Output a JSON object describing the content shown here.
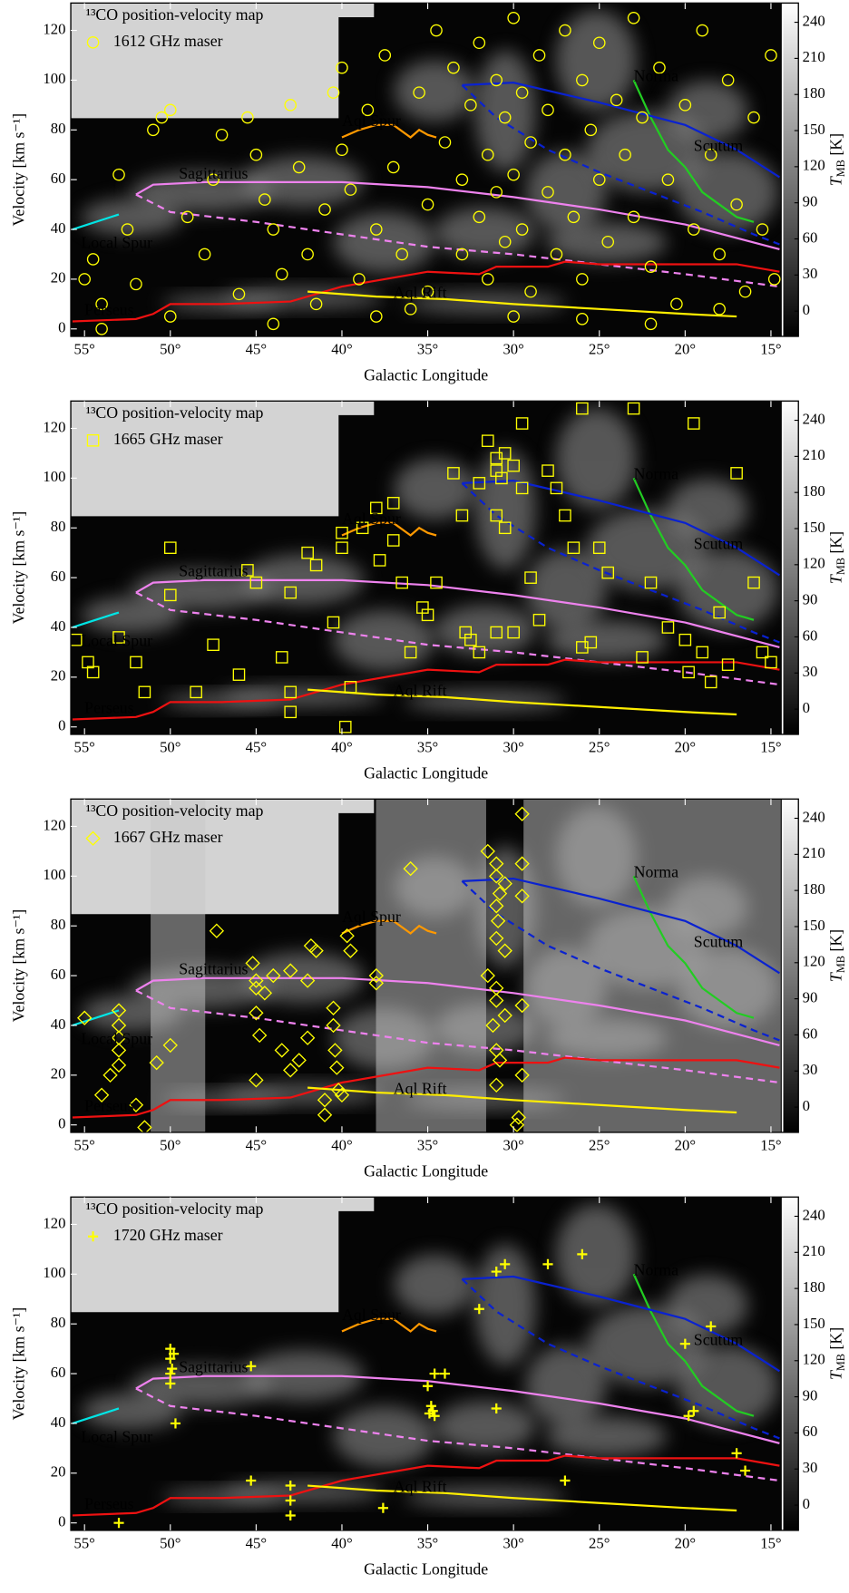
{
  "axes": {
    "xlabel": "Galactic Longitude",
    "ylabel": "Velocity [km s⁻¹]",
    "y2label": "T",
    "y2label_sub": "MB",
    "y2label_unit": "[K]",
    "xlim": [
      55.8,
      14.4
    ],
    "ylim": [
      -3,
      131
    ],
    "y2lim": [
      -21,
      256
    ],
    "xticks": [
      {
        "value": 55,
        "label": "55°"
      },
      {
        "value": 50,
        "label": "50°"
      },
      {
        "value": 45,
        "label": "45°"
      },
      {
        "value": 40,
        "label": "40°"
      },
      {
        "value": 35,
        "label": "35°"
      },
      {
        "value": 30,
        "label": "30°"
      },
      {
        "value": 25,
        "label": "25°"
      },
      {
        "value": 20,
        "label": "20°"
      },
      {
        "value": 15,
        "label": "15°"
      }
    ],
    "yticks": [
      0,
      20,
      40,
      60,
      80,
      100,
      120
    ],
    "y2ticks": [
      0,
      30,
      60,
      90,
      120,
      150,
      180,
      210,
      240
    ]
  },
  "arms": [
    {
      "name": "Local Spur",
      "color": "#00e5e5",
      "x": [
        55.7,
        53
      ],
      "values": [
        40,
        46
      ]
    },
    {
      "name": "Sagittarius",
      "color": "#ee82ee",
      "x": [
        52,
        51,
        48,
        45,
        40,
        35,
        30,
        25,
        20,
        14.5
      ],
      "values": [
        54,
        58,
        59,
        59,
        59,
        57,
        53,
        48,
        42,
        32
      ]
    },
    {
      "color": "#ee82ee",
      "style": "dashed",
      "x": [
        52,
        50,
        45,
        40,
        35,
        30,
        25,
        20,
        14.5
      ],
      "values": [
        54,
        47,
        43,
        38,
        33,
        30,
        26,
        22,
        17
      ]
    },
    {
      "name": "Perseus",
      "color": "#ee1111",
      "x": [
        55.7,
        52,
        51,
        50,
        47,
        43,
        40,
        35,
        32,
        31,
        28,
        27,
        25,
        20,
        17,
        14.5
      ],
      "values": [
        3,
        4,
        6,
        10,
        10,
        11,
        17,
        23,
        22,
        25,
        25,
        27,
        26,
        26,
        26,
        23
      ]
    },
    {
      "name": "Aql Spur",
      "color": "#ff9900",
      "x": [
        40,
        39,
        38,
        37,
        36,
        35.5,
        35,
        34.5
      ],
      "values": [
        77,
        80,
        82,
        82,
        77,
        80,
        78,
        77
      ]
    },
    {
      "name": "Aql Rift",
      "color": "#ffee00",
      "x": [
        42,
        38,
        34,
        30,
        25,
        20,
        17
      ],
      "values": [
        15,
        13,
        12,
        10,
        8,
        6,
        5
      ]
    },
    {
      "name": "Norma",
      "color": "#22cc22",
      "x": [
        23,
        22,
        21,
        20,
        19,
        17,
        16
      ],
      "values": [
        100,
        85,
        72,
        65,
        55,
        45,
        43
      ]
    },
    {
      "name": "Scutum",
      "color": "#0a22d0",
      "x": [
        33,
        30,
        25,
        20,
        17,
        14.5
      ],
      "values": [
        98,
        99,
        91,
        82,
        72,
        61
      ]
    },
    {
      "color": "#0a22d0",
      "style": "dashed",
      "x": [
        33,
        31,
        28,
        25,
        22,
        19,
        16,
        14.5
      ],
      "values": [
        98,
        85,
        72,
        63,
        55,
        47,
        38,
        34
      ]
    }
  ],
  "chart_data": [
    {
      "type": "scatter",
      "title": "¹³CO position-velocity map",
      "mask": "none",
      "series": [
        {
          "name": "1612 GHz maser",
          "color": "#ffff00",
          "marker": "circle",
          "x": [
            55,
            54.5,
            54,
            53,
            52.5,
            52,
            51,
            50.5,
            50,
            49,
            48,
            47.5,
            47,
            46,
            45.5,
            45,
            44.5,
            44,
            43.5,
            43,
            42.5,
            42,
            41.5,
            41,
            40.5,
            40,
            39.5,
            39,
            38.5,
            38,
            37.5,
            37,
            36.5,
            36,
            35.5,
            35,
            34.5,
            34,
            33.5,
            33,
            33,
            32.5,
            32,
            32,
            31.5,
            31.5,
            31,
            31,
            30.5,
            30.5,
            30,
            30,
            29.5,
            29.5,
            29,
            29,
            28.5,
            28,
            28,
            27.5,
            27,
            27,
            26.5,
            26,
            26,
            25.5,
            25,
            25,
            24.5,
            24,
            23.5,
            23,
            23,
            22.5,
            22,
            21.5,
            21,
            20.5,
            20,
            19.5,
            19,
            18.5,
            18,
            17.5,
            17,
            16.5,
            16,
            15.5,
            15,
            14.8,
            35,
            38,
            44,
            50,
            54,
            26,
            22,
            18,
            30,
            40
          ],
          "values": [
            20,
            28,
            10,
            62,
            40,
            18,
            80,
            85,
            88,
            45,
            30,
            60,
            78,
            14,
            85,
            70,
            52,
            40,
            22,
            90,
            65,
            30,
            10,
            48,
            95,
            72,
            56,
            20,
            88,
            40,
            110,
            65,
            30,
            8,
            95,
            50,
            120,
            75,
            105,
            60,
            30,
            90,
            115,
            45,
            70,
            20,
            100,
            55,
            85,
            35,
            125,
            62,
            95,
            40,
            75,
            15,
            110,
            55,
            88,
            30,
            120,
            70,
            45,
            100,
            20,
            80,
            60,
            115,
            35,
            92,
            70,
            125,
            45,
            85,
            25,
            105,
            60,
            10,
            90,
            40,
            120,
            70,
            30,
            100,
            50,
            15,
            85,
            40,
            110,
            20,
            15,
            5,
            2,
            5,
            0,
            4,
            2,
            8,
            5,
            105
          ]
        }
      ]
    },
    {
      "type": "scatter",
      "title": "¹³CO position-velocity map",
      "mask": "none",
      "series": [
        {
          "name": "1665 GHz maser",
          "color": "#ffff00",
          "marker": "square",
          "x": [
            55.5,
            54.8,
            54.5,
            53,
            52,
            51.5,
            50,
            50,
            48.5,
            47.5,
            46,
            45,
            45.5,
            43.5,
            43,
            43,
            43,
            42,
            41.5,
            40.5,
            40,
            40,
            39.5,
            39.8,
            38.8,
            38,
            37,
            37.8,
            37,
            36.5,
            36,
            35.3,
            35,
            34.5,
            33.5,
            33,
            32.8,
            32.5,
            32,
            31.5,
            31,
            31,
            30.7,
            30.5,
            30,
            29.5,
            31,
            30.5,
            31,
            30,
            29.5,
            28,
            27.5,
            27,
            26.5,
            26,
            25,
            24.5,
            23,
            22,
            21,
            20,
            19.5,
            19,
            18,
            17,
            16,
            15,
            15.5,
            25.5,
            28.5,
            29,
            22.5,
            19.8,
            18.5,
            17.5,
            26,
            32
          ],
          "values": [
            35,
            26,
            22,
            36,
            26,
            14,
            72,
            53,
            14,
            33,
            21,
            58,
            63,
            28,
            54,
            14,
            6,
            70,
            65,
            42,
            78,
            72,
            16,
            0,
            80,
            88,
            90,
            67,
            75,
            58,
            30,
            48,
            45,
            58,
            102,
            85,
            38,
            35,
            30,
            115,
            108,
            103,
            100,
            110,
            105,
            96,
            85,
            80,
            38,
            38,
            122,
            103,
            96,
            85,
            72,
            128,
            72,
            62,
            128,
            58,
            40,
            35,
            122,
            30,
            46,
            102,
            58,
            26,
            30,
            34,
            43,
            60,
            28,
            22,
            18,
            25,
            32,
            98
          ]
        }
      ]
    },
    {
      "type": "scatter",
      "title": "¹³CO position-velocity map",
      "mask": "bands",
      "series": [
        {
          "name": "1667 GHz maser",
          "color": "#ffff00",
          "marker": "diamond",
          "x": [
            55,
            54,
            53,
            53,
            53,
            53,
            53,
            53.5,
            52,
            51.5,
            50.8,
            50,
            47.3,
            45,
            45.2,
            45,
            44.5,
            45,
            44.8,
            45,
            44,
            43,
            43.5,
            43,
            42.5,
            42,
            42,
            41.8,
            41.5,
            41,
            41,
            40.5,
            40.5,
            40.4,
            40.3,
            40.2,
            40,
            39.7,
            39.5,
            38,
            38,
            36,
            31.5,
            31,
            31,
            30.5,
            30.8,
            31,
            30.9,
            31,
            30.5,
            31.5,
            31,
            31,
            30.5,
            31.2,
            31,
            30.8,
            31,
            29.5,
            29.5,
            29.5,
            29.5,
            29.5,
            29.7,
            29.8
          ],
          "values": [
            43,
            12,
            46,
            40,
            35,
            30,
            24,
            20,
            8,
            -1,
            25,
            32,
            78,
            55,
            65,
            58,
            53,
            45,
            36,
            18,
            60,
            62,
            30,
            22,
            26,
            35,
            58,
            72,
            70,
            10,
            4,
            47,
            40,
            30,
            23,
            14,
            12,
            76,
            70,
            60,
            57,
            103,
            110,
            105,
            100,
            97,
            93,
            88,
            82,
            75,
            70,
            60,
            55,
            50,
            44,
            40,
            30,
            26,
            16,
            125,
            105,
            92,
            48,
            20,
            3,
            0
          ]
        }
      ]
    },
    {
      "type": "scatter",
      "title": "¹³CO position-velocity map",
      "mask": "none",
      "series": [
        {
          "name": "1720 GHz maser",
          "color": "#ffff00",
          "marker": "plus",
          "x": [
            53,
            50,
            49.8,
            50,
            49.9,
            50,
            50,
            49.7,
            45.3,
            45.3,
            43,
            43,
            43,
            37.6,
            34.6,
            34,
            35,
            34.8,
            34.7,
            34.6,
            34.9,
            32,
            31,
            30.5,
            31,
            28,
            26,
            27,
            20,
            19.8,
            19.5,
            18.5,
            17,
            16.5
          ],
          "values": [
            0,
            70,
            68,
            66,
            62,
            60,
            56,
            40,
            63,
            17,
            15,
            9,
            3,
            6,
            60,
            60,
            55,
            47,
            45,
            43,
            44,
            86,
            101,
            104,
            46,
            104,
            108,
            17,
            72,
            43,
            45,
            79,
            28,
            21
          ]
        }
      ]
    }
  ]
}
